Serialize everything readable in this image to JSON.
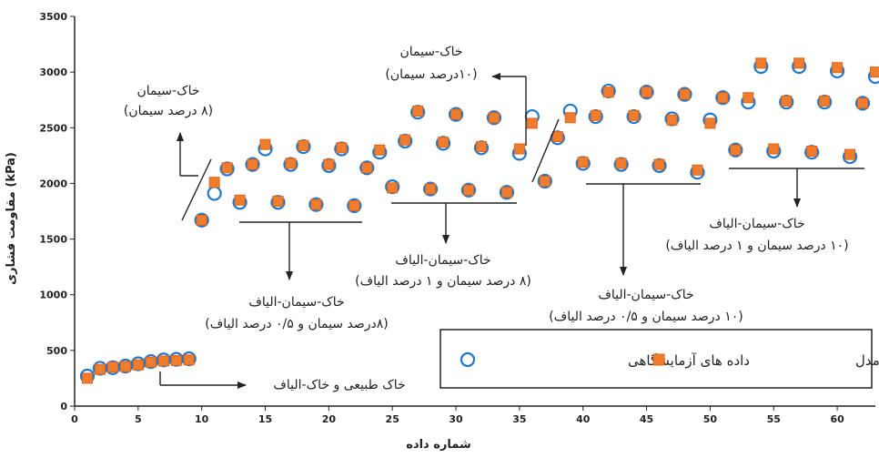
{
  "chart_data": {
    "type": "scatter",
    "xlabel": "شماره داده",
    "ylabel": "مقاومت فشاری (kPa)",
    "xlim": [
      0,
      63
    ],
    "ylim": [
      0,
      3500
    ],
    "xticks": [
      0,
      5,
      10,
      15,
      20,
      25,
      30,
      35,
      40,
      45,
      50,
      55,
      60
    ],
    "yticks": [
      0,
      500,
      1000,
      1500,
      2000,
      2500,
      3000,
      3500
    ],
    "grid": false,
    "legend_position": "bottom-right",
    "colors": {
      "experimental": "#1f77d0",
      "model": "#f07d2e",
      "axis": "#222222"
    },
    "series": [
      {
        "name": "داده های آزمایشگاهی",
        "marker": "circle-open",
        "points": [
          [
            1,
            270
          ],
          [
            2,
            340
          ],
          [
            3,
            345
          ],
          [
            4,
            360
          ],
          [
            5,
            380
          ],
          [
            6,
            400
          ],
          [
            7,
            415
          ],
          [
            8,
            420
          ],
          [
            9,
            425
          ],
          [
            10,
            1670
          ],
          [
            11,
            1910
          ],
          [
            12,
            2130
          ],
          [
            13,
            1830
          ],
          [
            14,
            2170
          ],
          [
            15,
            2310
          ],
          [
            16,
            1830
          ],
          [
            17,
            2170
          ],
          [
            18,
            2330
          ],
          [
            19,
            1810
          ],
          [
            20,
            2160
          ],
          [
            21,
            2310
          ],
          [
            22,
            1800
          ],
          [
            23,
            2140
          ],
          [
            24,
            2280
          ],
          [
            25,
            1970
          ],
          [
            26,
            2380
          ],
          [
            27,
            2640
          ],
          [
            28,
            1950
          ],
          [
            29,
            2360
          ],
          [
            30,
            2620
          ],
          [
            31,
            1940
          ],
          [
            32,
            2320
          ],
          [
            33,
            2590
          ],
          [
            34,
            1920
          ],
          [
            35,
            2270
          ],
          [
            36,
            2600
          ],
          [
            37,
            2020
          ],
          [
            38,
            2410
          ],
          [
            39,
            2650
          ],
          [
            40,
            2180
          ],
          [
            41,
            2600
          ],
          [
            42,
            2830
          ],
          [
            43,
            2170
          ],
          [
            44,
            2600
          ],
          [
            45,
            2820
          ],
          [
            46,
            2160
          ],
          [
            47,
            2580
          ],
          [
            48,
            2800
          ],
          [
            49,
            2100
          ],
          [
            50,
            2570
          ],
          [
            51,
            2770
          ],
          [
            52,
            2300
          ],
          [
            53,
            2730
          ],
          [
            54,
            3050
          ],
          [
            55,
            2290
          ],
          [
            56,
            2730
          ],
          [
            57,
            3050
          ],
          [
            58,
            2280
          ],
          [
            59,
            2730
          ],
          [
            60,
            3010
          ],
          [
            61,
            2240
          ],
          [
            62,
            2720
          ],
          [
            63,
            2960
          ]
        ]
      },
      {
        "name": "داده های حاصل از مدل",
        "marker": "square-filled",
        "points": [
          [
            1,
            250
          ],
          [
            2,
            330
          ],
          [
            3,
            350
          ],
          [
            4,
            355
          ],
          [
            5,
            370
          ],
          [
            6,
            395
          ],
          [
            7,
            405
          ],
          [
            8,
            410
          ],
          [
            9,
            415
          ],
          [
            10,
            1670
          ],
          [
            11,
            2010
          ],
          [
            12,
            2140
          ],
          [
            13,
            1850
          ],
          [
            14,
            2170
          ],
          [
            15,
            2350
          ],
          [
            16,
            1840
          ],
          [
            17,
            2180
          ],
          [
            18,
            2340
          ],
          [
            19,
            1810
          ],
          [
            20,
            2170
          ],
          [
            21,
            2320
          ],
          [
            22,
            1800
          ],
          [
            23,
            2140
          ],
          [
            24,
            2300
          ],
          [
            25,
            1960
          ],
          [
            26,
            2390
          ],
          [
            27,
            2650
          ],
          [
            28,
            1950
          ],
          [
            29,
            2370
          ],
          [
            30,
            2620
          ],
          [
            31,
            1940
          ],
          [
            32,
            2330
          ],
          [
            33,
            2590
          ],
          [
            34,
            1920
          ],
          [
            35,
            2310
          ],
          [
            36,
            2540
          ],
          [
            37,
            2020
          ],
          [
            38,
            2420
          ],
          [
            39,
            2590
          ],
          [
            40,
            2190
          ],
          [
            41,
            2610
          ],
          [
            42,
            2820
          ],
          [
            43,
            2180
          ],
          [
            44,
            2610
          ],
          [
            45,
            2820
          ],
          [
            46,
            2170
          ],
          [
            47,
            2570
          ],
          [
            48,
            2800
          ],
          [
            49,
            2120
          ],
          [
            50,
            2540
          ],
          [
            51,
            2770
          ],
          [
            52,
            2300
          ],
          [
            53,
            2770
          ],
          [
            54,
            3080
          ],
          [
            55,
            2310
          ],
          [
            56,
            2740
          ],
          [
            57,
            3080
          ],
          [
            58,
            2290
          ],
          [
            59,
            2740
          ],
          [
            60,
            3040
          ],
          [
            61,
            2260
          ],
          [
            62,
            2720
          ],
          [
            63,
            3000
          ]
        ]
      }
    ],
    "legend": {
      "experimental": "داده های آزمایشگاهی",
      "model": "داده های حاصل از مدل"
    },
    "annotations": [
      {
        "id": "soil-fiber",
        "lines": [
          "خاک طبیعی و خاک-الیاف"
        ]
      },
      {
        "id": "cem8",
        "lines": [
          "خاک-سیمان",
          "(۸ درصد سیمان)"
        ]
      },
      {
        "id": "cem10",
        "lines": [
          "خاک-سیمان",
          "(۱۰درصد سیمان)"
        ]
      },
      {
        "id": "cem8-f05",
        "lines": [
          "خاک-سیمان-الیاف",
          "(۸درصد سیمان و ۰/۵ درصد الیاف)"
        ]
      },
      {
        "id": "cem8-f1",
        "lines": [
          "خاک-سیمان-الیاف",
          "(۸ درصد سیمان و ۱ درصد الیاف)"
        ]
      },
      {
        "id": "cem10-f05",
        "lines": [
          "خاک-سیمان-الیاف",
          "(۱۰ درصد سیمان و ۰/۵ درصد الیاف)"
        ]
      },
      {
        "id": "cem10-f1",
        "lines": [
          "خاک-سیمان-الیاف",
          "(۱۰ درصد سیمان و ۱ درصد الیاف)"
        ]
      }
    ]
  }
}
